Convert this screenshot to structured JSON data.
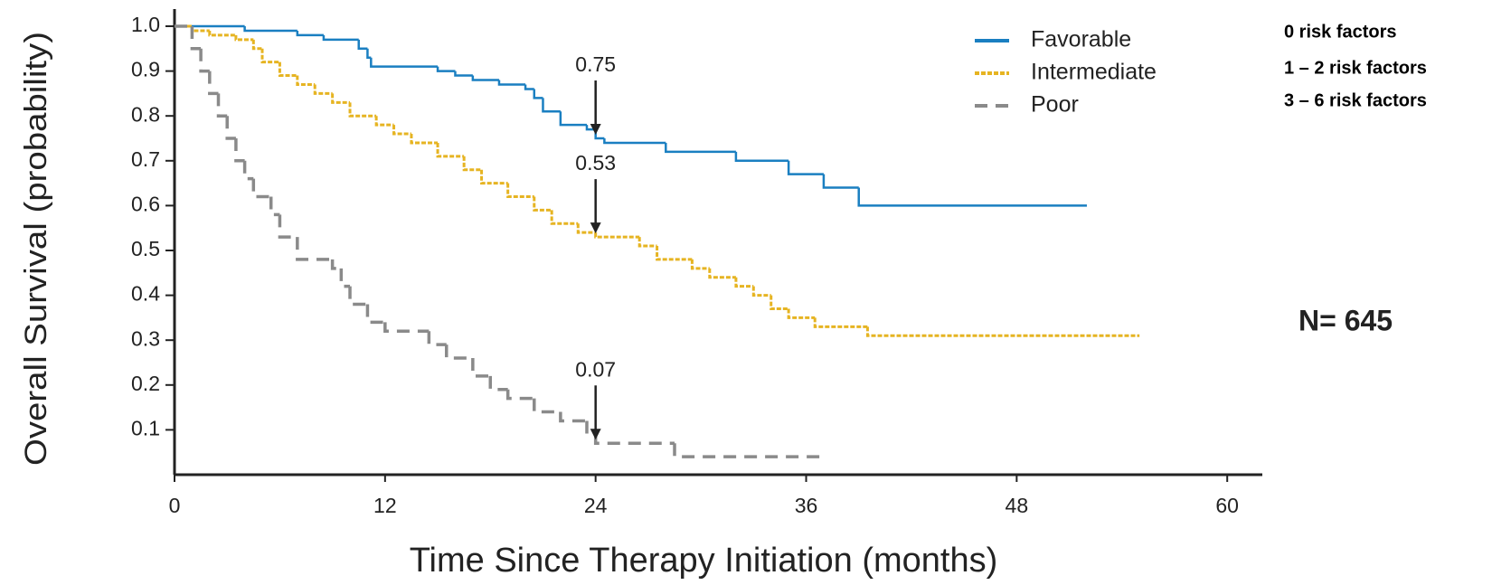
{
  "chart_data": {
    "type": "step",
    "ylabel": "Overall Survival (probability)",
    "xlabel": "Time Since Therapy Initiation (months)",
    "xlim": [
      0,
      62
    ],
    "ylim": [
      0,
      1
    ],
    "xticks": [
      0,
      12,
      24,
      36,
      48,
      60
    ],
    "yticks": [
      0.1,
      0.2,
      0.3,
      0.4,
      0.5,
      0.6,
      0.7,
      0.8,
      0.9,
      {
        "value": 1,
        "label": "1.0"
      }
    ],
    "series": [
      {
        "name": "Favorable",
        "color": "#1a7fc1",
        "style": "solid",
        "x": [
          0,
          4,
          7,
          8.5,
          10.5,
          11,
          11.2,
          15,
          16,
          17,
          18.5,
          20,
          20.5,
          21,
          22,
          23.5,
          24,
          24.5,
          28,
          32,
          35,
          37,
          39,
          52
        ],
        "values": [
          1.0,
          0.99,
          0.98,
          0.97,
          0.95,
          0.93,
          0.91,
          0.9,
          0.89,
          0.88,
          0.87,
          0.86,
          0.84,
          0.81,
          0.78,
          0.77,
          0.75,
          0.74,
          0.72,
          0.7,
          0.67,
          0.64,
          0.6,
          0.6
        ]
      },
      {
        "name": "Intermediate",
        "color": "#e6b422",
        "style": "dotted",
        "x": [
          0,
          1,
          2,
          3.5,
          4.5,
          5,
          6,
          7,
          8,
          9,
          10,
          11.5,
          12.5,
          13.5,
          15,
          16.5,
          17.5,
          19,
          20.5,
          21.5,
          23,
          24,
          26.5,
          27.5,
          29.5,
          30.5,
          32,
          33,
          34,
          35,
          36.5,
          39.5,
          55
        ],
        "values": [
          1.0,
          0.99,
          0.98,
          0.97,
          0.95,
          0.92,
          0.89,
          0.87,
          0.85,
          0.83,
          0.8,
          0.78,
          0.76,
          0.74,
          0.71,
          0.68,
          0.65,
          0.62,
          0.59,
          0.56,
          0.54,
          0.53,
          0.51,
          0.48,
          0.46,
          0.44,
          0.42,
          0.4,
          0.37,
          0.35,
          0.33,
          0.31,
          0.31
        ]
      },
      {
        "name": "Poor",
        "color": "#8a8a8a",
        "style": "dashed",
        "x": [
          0,
          1,
          1.5,
          2,
          2.5,
          3,
          3.5,
          4,
          4.5,
          5.5,
          6,
          7,
          9,
          9.5,
          10,
          11,
          12,
          14.5,
          15.5,
          17,
          18,
          19,
          20.5,
          22,
          23.5,
          24,
          28.5,
          37
        ],
        "values": [
          1.0,
          0.95,
          0.9,
          0.85,
          0.8,
          0.75,
          0.7,
          0.66,
          0.62,
          0.58,
          0.53,
          0.48,
          0.46,
          0.42,
          0.38,
          0.34,
          0.32,
          0.29,
          0.26,
          0.22,
          0.19,
          0.17,
          0.14,
          0.12,
          0.09,
          0.07,
          0.04,
          0.04
        ]
      }
    ],
    "annotations": [
      {
        "text": "0.75",
        "x": 24,
        "y": 0.75
      },
      {
        "text": "0.53",
        "x": 24,
        "y": 0.53
      },
      {
        "text": "0.07",
        "x": 24,
        "y": 0.07
      }
    ],
    "side_notes": [
      "0 risk factors",
      "1 – 2 risk factors",
      "3 – 6 risk factors"
    ],
    "sample_size": "N= 645"
  }
}
